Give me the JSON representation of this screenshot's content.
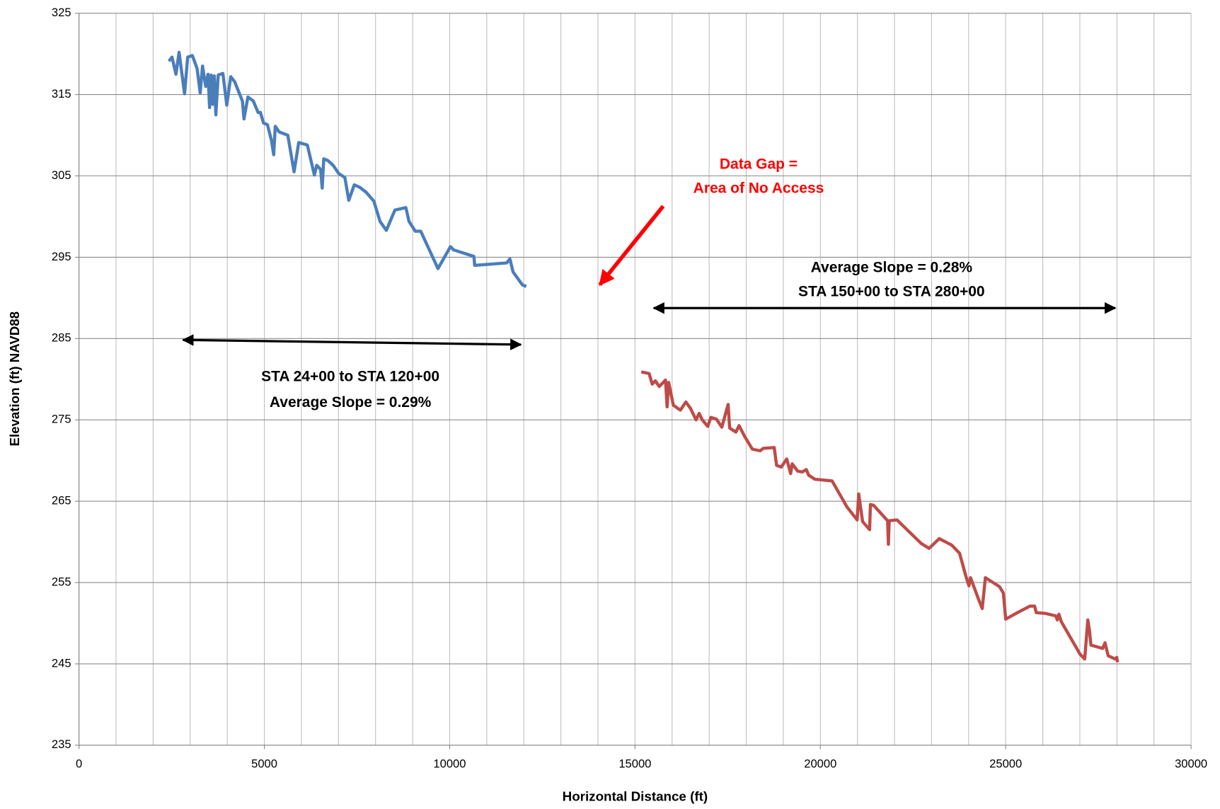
{
  "chart_data": {
    "type": "line",
    "xlabel": "Horizontal Distance (ft)",
    "ylabel": "Elevation (ft) NAVD88",
    "xlim": [
      0,
      30000
    ],
    "xticks": [
      0,
      5000,
      10000,
      15000,
      20000,
      25000,
      30000
    ],
    "x_minor_ticks": [
      0,
      1000,
      2000,
      3000,
      4000,
      5000,
      6000,
      7000,
      8000,
      9000,
      10000,
      11000,
      12000,
      13000,
      14000,
      15000,
      16000,
      17000,
      18000,
      19000,
      20000,
      21000,
      22000,
      23000,
      24000,
      25000,
      26000,
      27000,
      28000,
      29000,
      30000
    ],
    "ylim": [
      235,
      325
    ],
    "yticks": [
      235,
      245,
      255,
      265,
      275,
      285,
      295,
      305,
      315,
      325
    ],
    "grid": true,
    "annotations": [
      "Data Gap =",
      "Area of No Access",
      "Average Slope = 0.28%",
      "STA 150+00 to STA 280+00",
      "STA 24+00 to STA 120+00",
      "Average Slope = 0.29%"
    ],
    "series": [
      {
        "color": "#4a7ebb",
        "x": [
          2426,
          2510,
          2616,
          2700,
          2848,
          2932,
          3059,
          3186,
          3270,
          3333,
          3418,
          3481,
          3523,
          3565,
          3607,
          3650,
          3692,
          3755,
          3882,
          3987,
          4093,
          4198,
          4409,
          4451,
          4557,
          4704,
          4831,
          4894,
          4979,
          5084,
          5190,
          5253,
          5295,
          5401,
          5633,
          5802,
          5928,
          6160,
          6350,
          6413,
          6519,
          6561,
          6603,
          6709,
          6857,
          7004,
          7173,
          7278,
          7426,
          7574,
          7743,
          7954,
          8122,
          8291,
          8523,
          8819,
          8903,
          9072,
          9219,
          9684,
          10021,
          10105,
          10654,
          10675,
          11540,
          11624,
          11709,
          11962,
          12068
        ],
        "values": [
          319.1,
          319.6,
          317.5,
          320.2,
          315.1,
          319.6,
          319.8,
          318.2,
          315.2,
          318.5,
          316,
          317.5,
          313.4,
          317.4,
          313.8,
          317.3,
          312.5,
          317.4,
          317.6,
          313.7,
          317.2,
          316.6,
          314.2,
          312,
          314.7,
          314.2,
          312.8,
          312.8,
          311.5,
          311.3,
          309.4,
          307.6,
          311.1,
          310.4,
          310,
          305.5,
          309.1,
          308.8,
          305.1,
          306.3,
          305.8,
          303.5,
          307.1,
          306.9,
          306.3,
          305.3,
          304.8,
          302,
          303.9,
          303.6,
          303,
          301.9,
          299.4,
          298.3,
          300.8,
          301.1,
          299.4,
          298.2,
          298.2,
          293.6,
          296.3,
          295.9,
          295.1,
          294,
          294.3,
          294.8,
          293.2,
          291.6,
          291.4
        ]
      },
      {
        "color": "#be4b48",
        "x": [
          15169,
          15380,
          15464,
          15549,
          15654,
          15759,
          15823,
          15865,
          15907,
          16034,
          16224,
          16371,
          16498,
          16646,
          16730,
          16814,
          16962,
          17046,
          17194,
          17342,
          17511,
          17553,
          17722,
          17806,
          17954,
          18165,
          18376,
          18460,
          18755,
          18819,
          18945,
          19093,
          19198,
          19241,
          19388,
          19515,
          19620,
          19684,
          19852,
          20316,
          20717,
          20992,
          21034,
          21139,
          21329,
          21350,
          21435,
          21814,
          21835,
          21857,
          22068,
          22405,
          22722,
          22932,
          23207,
          23544,
          23755,
          23924,
          24008,
          24051,
          24262,
          24367,
          24451,
          24831,
          24937,
          25000,
          25316,
          25654,
          25780,
          25823,
          26076,
          26350,
          26392,
          26435,
          26498,
          27004,
          27131,
          27215,
          27257,
          27300,
          27616,
          27679,
          27764,
          27954,
          27996,
          28017
        ],
        "values": [
          280.9,
          280.7,
          279.4,
          279.8,
          279.1,
          279.6,
          279.9,
          276.6,
          279.6,
          276.8,
          276.2,
          277.2,
          276.4,
          275,
          275.8,
          275,
          274.2,
          275.3,
          275.1,
          274.1,
          276.9,
          274,
          273.5,
          274.3,
          273,
          271.4,
          271.2,
          271.5,
          271.6,
          269.4,
          269.2,
          270.2,
          268.4,
          269.6,
          268.7,
          268.6,
          268.9,
          268.2,
          267.7,
          267.5,
          264.3,
          262.7,
          265.9,
          262.5,
          261.5,
          264.6,
          264.5,
          262.6,
          259.7,
          262.6,
          262.7,
          261.2,
          259.8,
          259.2,
          260.4,
          259.6,
          258.6,
          255.8,
          254.6,
          255.6,
          253,
          251.8,
          255.6,
          254.5,
          253.7,
          250.5,
          251.3,
          252.1,
          252.1,
          251.3,
          251.2,
          250.9,
          250.4,
          251.1,
          250.2,
          246.2,
          245.6,
          250.4,
          249.2,
          247.3,
          246.9,
          247.6,
          246,
          245.6,
          245.8,
          245.2
        ]
      }
    ]
  }
}
